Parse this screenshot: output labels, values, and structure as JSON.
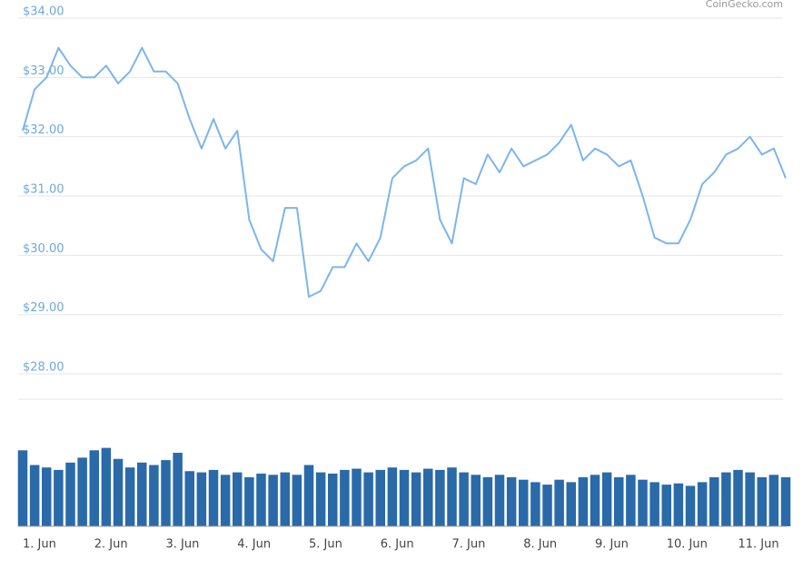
{
  "credit": "CoinGecko.com",
  "chart_data": {
    "type": "line",
    "categories": [
      "1. Jun",
      null,
      null,
      null,
      null,
      null,
      "2. Jun",
      null,
      null,
      null,
      null,
      null,
      "3. Jun",
      null,
      null,
      null,
      null,
      null,
      "4. Jun",
      null,
      null,
      null,
      null,
      null,
      "5. Jun",
      null,
      null,
      null,
      null,
      null,
      "6. Jun",
      null,
      null,
      null,
      null,
      null,
      "7. Jun",
      null,
      null,
      null,
      null,
      null,
      "8. Jun",
      null,
      null,
      null,
      null,
      null,
      "9. Jun",
      null,
      null,
      null,
      null,
      null,
      "10. Jun",
      null,
      null,
      null,
      null,
      null,
      "11. Jun",
      null,
      null,
      null,
      null
    ],
    "series": [
      {
        "color": "#7cb5ec",
        "values": [
          32.1,
          32.8,
          33.0,
          33.5,
          33.2,
          33.0,
          33.0,
          33.2,
          32.9,
          33.1,
          33.5,
          33.1,
          33.1,
          32.9,
          32.3,
          31.8,
          32.3,
          31.8,
          32.1,
          30.6,
          30.1,
          29.9,
          30.8,
          30.8,
          29.3,
          29.4,
          29.8,
          29.8,
          30.2,
          29.9,
          30.3,
          31.3,
          31.5,
          31.6,
          31.8,
          30.6,
          30.2,
          31.3,
          31.2,
          31.7,
          31.4,
          31.8,
          31.5,
          31.6,
          31.7,
          31.9,
          32.2,
          31.6,
          31.8,
          31.7,
          31.5,
          31.6,
          31.0,
          30.3,
          30.2,
          30.2,
          30.6,
          31.2,
          31.4,
          31.7,
          31.8,
          32.0,
          31.7,
          31.8,
          31.3
        ]
      }
    ],
    "ylim": [
      27.5,
      34
    ],
    "yticks": [
      {
        "value": 28,
        "label": "$28.00"
      },
      {
        "value": 29,
        "label": "$29.00"
      },
      {
        "value": 30,
        "label": "$30.00"
      },
      {
        "value": 31,
        "label": "$31.00"
      },
      {
        "value": 32,
        "label": "$32.00"
      },
      {
        "value": 33,
        "label": "$33.00"
      },
      {
        "value": 34,
        "label": "$34.00"
      }
    ],
    "grid": true,
    "volume": {
      "type": "bar",
      "color": "#2a6aa8",
      "ylim": [
        0,
        100
      ],
      "values": [
        62,
        50,
        48,
        46,
        52,
        56,
        62,
        64,
        55,
        48,
        52,
        50,
        54,
        60,
        45,
        44,
        46,
        42,
        44,
        40,
        43,
        42,
        44,
        42,
        50,
        44,
        43,
        46,
        47,
        44,
        46,
        48,
        46,
        44,
        47,
        46,
        48,
        44,
        42,
        40,
        42,
        40,
        38,
        36,
        34,
        38,
        36,
        40,
        42,
        44,
        40,
        42,
        38,
        36,
        34,
        35,
        33,
        36,
        40,
        44,
        46,
        44,
        40,
        42,
        40
      ]
    }
  }
}
